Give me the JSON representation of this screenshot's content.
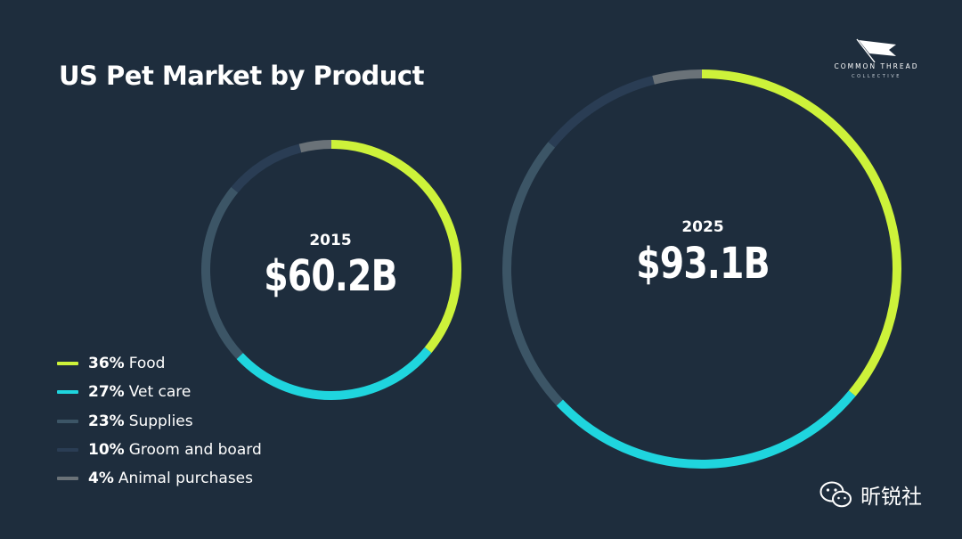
{
  "title": "US Pet Market by Product",
  "logo": {
    "line1": "COMMON THREAD",
    "line2": "COLLECTIVE"
  },
  "watermark": "昕锐社",
  "colors": {
    "background": "#1e2d3d",
    "food": "#cdf23a",
    "vet_care": "#1fd5de",
    "supplies": "#3c5566",
    "groom_and_board": "#2a3d54",
    "animal_purchases": "#6a7278"
  },
  "legend": [
    {
      "pct": "36%",
      "label": "Food",
      "color": "#cdf23a"
    },
    {
      "pct": "27%",
      "label": "Vet care",
      "color": "#1fd5de"
    },
    {
      "pct": "23%",
      "label": "Supplies",
      "color": "#3c5566"
    },
    {
      "pct": "10%",
      "label": "Groom and board",
      "color": "#2a3d54"
    },
    {
      "pct": "4%",
      "label": "Animal purchases",
      "color": "#6a7278"
    }
  ],
  "chart_data": {
    "type": "pie",
    "title": "US Pet Market by Product",
    "categories": [
      "Food",
      "Vet care",
      "Supplies",
      "Groom and board",
      "Animal purchases"
    ],
    "series": [
      {
        "name": "2015",
        "total": "$60.2B",
        "values": [
          36,
          27,
          23,
          10,
          4
        ]
      },
      {
        "name": "2025",
        "total": "$93.1B",
        "values": [
          36,
          27,
          23,
          10,
          4
        ]
      }
    ],
    "legend_position": "bottom-left"
  }
}
